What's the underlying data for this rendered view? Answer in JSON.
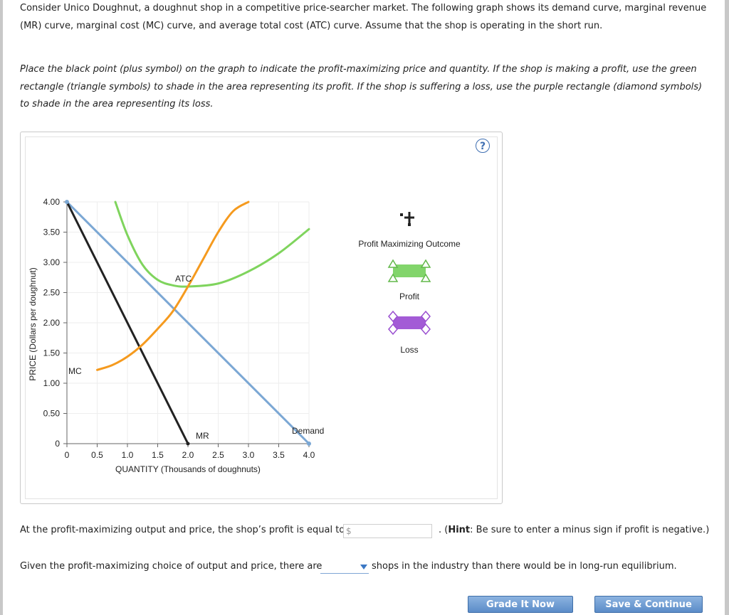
{
  "intro": "Consider Unico Doughnut, a doughnut shop in a competitive price-searcher market. The following graph shows its demand curve, marginal revenue (MR) curve, marginal cost (MC) curve, and average total cost (ATC) curve. Assume that the shop is operating in the short run.",
  "instructions": "Place the black point (plus symbol) on the graph to indicate the profit-maximizing price and quantity. If the shop is making a profit, use the green rectangle (triangle symbols) to shade in the area representing its profit. If the shop is suffering a loss, use the purple rectangle (diamond symbols) to shade in the area representing its loss.",
  "help_icon": "?",
  "chart_data": {
    "type": "line",
    "xlabel": "QUANTITY (Thousands of doughnuts)",
    "ylabel": "PRICE (Dollars per doughnut)",
    "xlim": [
      0,
      4.0
    ],
    "ylim": [
      0,
      4.0
    ],
    "x_ticks": [
      "0",
      "0.5",
      "1.0",
      "1.5",
      "2.0",
      "2.5",
      "3.0",
      "3.5",
      "4.0"
    ],
    "y_ticks": [
      "0",
      "0.50",
      "1.00",
      "1.50",
      "2.00",
      "2.50",
      "3.00",
      "3.50",
      "4.00"
    ],
    "grid": true,
    "series": [
      {
        "name": "Demand",
        "color": "#7ba7d4",
        "x": [
          0,
          4.0
        ],
        "y": [
          4.0,
          0
        ]
      },
      {
        "name": "MR",
        "color": "#222222",
        "x": [
          0,
          2.0
        ],
        "y": [
          4.0,
          0
        ]
      },
      {
        "name": "ATC",
        "color": "#7fd45d",
        "x": [
          0.8,
          1.0,
          1.25,
          1.5,
          1.75,
          2.0,
          2.5,
          3.0,
          3.5,
          4.0
        ],
        "y": [
          4.0,
          3.45,
          2.96,
          2.71,
          2.62,
          2.6,
          2.65,
          2.85,
          3.15,
          3.55
        ]
      },
      {
        "name": "MC",
        "color": "#f59a1e",
        "x": [
          0.5,
          0.75,
          1.0,
          1.25,
          1.5,
          1.75,
          2.0,
          2.25,
          2.5,
          2.75,
          3.0
        ],
        "y": [
          1.22,
          1.3,
          1.44,
          1.64,
          1.9,
          2.19,
          2.6,
          3.05,
          3.5,
          3.85,
          4.0
        ]
      }
    ]
  },
  "legend": {
    "point_label": "Profit Maximizing Outcome",
    "profit_label": "Profit",
    "loss_label": "Loss",
    "colors": {
      "profit": "#82d56b",
      "loss": "#a35bd6",
      "point": "#222222"
    }
  },
  "question1": {
    "text": "At the profit-maximizing output and price, the shop’s profit is equal to",
    "currency": "$",
    "value": "",
    "hint_bold": "Hint",
    "hint_text": "Be sure to enter a minus sign if profit is negative.)"
  },
  "question2": {
    "before": "Given the profit-maximizing choice of output and price, there are",
    "selected": "",
    "after": "shops in the industry than there would be in long-run equilibrium."
  },
  "buttons": {
    "grade": "Grade It Now",
    "save": "Save & Continue"
  }
}
